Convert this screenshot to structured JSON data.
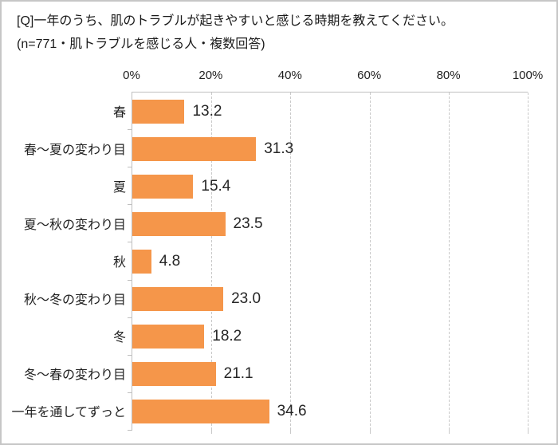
{
  "header": {
    "title": "[Q]一年のうち、肌のトラブルが起きやすいと感じる時期を教えてください。",
    "subtitle": "(n=771・肌トラブルを感じる人・複数回答)"
  },
  "chart_data": {
    "type": "bar",
    "orientation": "horizontal",
    "title": "",
    "xlabel": "",
    "ylabel": "",
    "xlim": [
      0,
      100
    ],
    "x_ticks": [
      "0%",
      "20%",
      "40%",
      "60%",
      "80%",
      "100%"
    ],
    "x_tick_values": [
      0,
      20,
      40,
      60,
      80,
      100
    ],
    "grid": "dashed-vertical",
    "axis_position": "top",
    "legend": "none",
    "categories": [
      "春",
      "春〜夏の変わり目",
      "夏",
      "夏〜秋の変わり目",
      "秋",
      "秋〜冬の変わり目",
      "冬",
      "冬〜春の変わり目",
      "一年を通してずっと"
    ],
    "values": [
      13.2,
      31.3,
      15.4,
      23.5,
      4.8,
      23.0,
      18.2,
      21.1,
      34.6
    ],
    "value_labels": [
      "13.2",
      "31.3",
      "15.4",
      "23.5",
      "4.8",
      "23.0",
      "18.2",
      "21.1",
      "34.6"
    ],
    "colors": {
      "bar": "#f5964a",
      "axis_line": "#bfbfbf",
      "gridline": "#c9c9c9",
      "text": "#1f1f1f",
      "value_text": "#262626",
      "frame_border": "#c6c6c6",
      "background": "#ffffff"
    }
  }
}
